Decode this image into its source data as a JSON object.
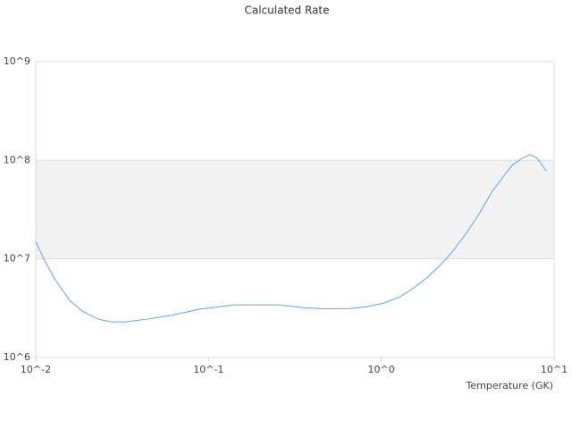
{
  "chart_data": {
    "type": "line",
    "title": "Calculated Rate",
    "x_label": "Temperature (GK)",
    "log_x": true,
    "log_y": true,
    "grid": true,
    "band": {
      "from": 10000000,
      "to": 100000000,
      "color": "#f2f2f2"
    },
    "xlim": [
      0.01,
      10
    ],
    "xticks": [
      {
        "value": 0.01,
        "label": "10^-2"
      },
      {
        "value": 0.1,
        "label": "10^-1"
      },
      {
        "value": 1,
        "label": "10^0"
      },
      {
        "value": 10,
        "label": "10^1"
      }
    ],
    "ylim": [
      1000000,
      1000000000
    ],
    "yticks": [
      {
        "value": 1000000,
        "label": "10^6"
      },
      {
        "value": 10000000,
        "label": "10^7"
      },
      {
        "value": 100000000,
        "label": "10^8"
      },
      {
        "value": 1000000000,
        "label": "10^9"
      }
    ],
    "x": [
      0.01,
      0.0113,
      0.013,
      0.0157,
      0.0186,
      0.023,
      0.0275,
      0.0329,
      0.0444,
      0.0597,
      0.0875,
      0.141,
      0.255,
      0.356,
      0.452,
      0.647,
      0.82,
      1.04,
      1.28,
      1.49,
      1.78,
      2.13,
      2.55,
      3.04,
      3.64,
      4.35,
      5.01,
      5.71,
      6.52,
      7.26,
      7.98,
      9.0
    ],
    "series": [
      {
        "color": "#5aa7e6",
        "values": [
          15000000,
          9500000,
          6100000,
          3800000,
          2950000,
          2450000,
          2300000,
          2300000,
          2450000,
          2660000,
          3080000,
          3420000,
          3420000,
          3200000,
          3130000,
          3130000,
          3280000,
          3570000,
          4130000,
          4880000,
          6140000,
          8200000,
          11500000,
          17400000,
          27600000,
          47500000,
          66000000,
          89000000,
          105000000,
          114000000,
          105000000,
          78000000
        ]
      }
    ]
  }
}
